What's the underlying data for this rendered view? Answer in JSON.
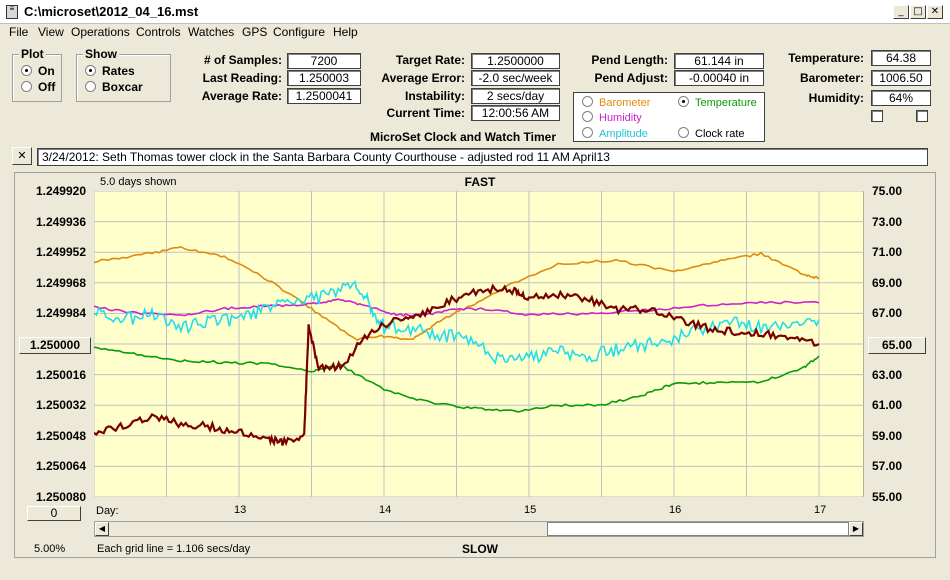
{
  "window": {
    "title": "C:\\microset\\2012_04_16.mst"
  },
  "menu": [
    "File",
    "View",
    "Operations",
    "Controls",
    "Watches",
    "GPS",
    "Configure",
    "Help"
  ],
  "plot_group": {
    "title": "Plot",
    "on": "On",
    "off": "Off",
    "selected": "On"
  },
  "show_group": {
    "title": "Show",
    "rates": "Rates",
    "boxcar": "Boxcar",
    "selected": "Rates"
  },
  "stats": {
    "samples_label": "# of Samples:",
    "samples_value": "7200",
    "last_label": "Last Reading:",
    "last_value": "1.250003",
    "avg_rate_label": "Average Rate:",
    "avg_rate_value": "1.2500041"
  },
  "target": {
    "target_label": "Target Rate:",
    "target_value": "1.2500000",
    "avg_err_label": "Average Error:",
    "avg_err_value": "-2.0 sec/week",
    "instab_label": "Instability:",
    "instab_value": "2 secs/day",
    "time_label": "Current Time:",
    "time_value": "12:00:56 AM"
  },
  "subtitle": "MicroSet Clock and Watch Timer",
  "pend": {
    "length_label": "Pend Length:",
    "length_value": "61.144 in",
    "adjust_label": "Pend Adjust:",
    "adjust_value": "-0.00040 in"
  },
  "aux_options": {
    "barometer": "Barometer",
    "temperature": "Temperature",
    "humidity": "Humidity",
    "amplitude": "Amplitude",
    "clock_rate": "Clock rate",
    "selected": "Temperature"
  },
  "env": {
    "temp_label": "Temperature:",
    "temp_value": "64.38",
    "baro_label": "Barometer:",
    "baro_value": "1006.50",
    "humid_label": "Humidity:",
    "humid_value": "64%"
  },
  "note": {
    "close": "✕",
    "text": "3/24/2012: Seth Thomas tower clock in the Santa Barbara County Courthouse - adjusted rod 11 AM  April13"
  },
  "chart_header": {
    "days_shown": "5.0 days shown",
    "fast": "FAST",
    "slow": "SLOW",
    "day_label": "Day:",
    "grid_note": "Each grid line = 1.106 secs/day",
    "percent": "5.00%",
    "center_left": "1.250000",
    "center_right": "65.00",
    "offset_button": "0"
  },
  "colors": {
    "plot_bg": "#ffffcc",
    "grid": "#c0c0c0",
    "rate": "#7a0000",
    "temperature": "#0a9a0a",
    "barometer": "#e08a10",
    "humidity": "#cc22cc",
    "amplitude": "#22ddee"
  },
  "chart_data": {
    "type": "line",
    "x_ticks": [
      "13",
      "14",
      "15",
      "16",
      "17"
    ],
    "y_left_ticks": [
      "1.249920",
      "1.249936",
      "1.249952",
      "1.249968",
      "1.249984",
      "1.250000",
      "1.250016",
      "1.250032",
      "1.250048",
      "1.250064",
      "1.250080"
    ],
    "y_right_ticks": [
      "75.00",
      "73.00",
      "71.00",
      "69.00",
      "67.00",
      "65.00",
      "63.00",
      "61.00",
      "59.00",
      "57.00",
      "55.00"
    ],
    "xlim": [
      12,
      17
    ],
    "ylim_left": [
      1.24992,
      1.25008
    ],
    "ylim_right": [
      55,
      75
    ],
    "series": [
      {
        "key": "barometer",
        "x": [
          12.0,
          12.3,
          12.6,
          12.9,
          13.2,
          13.5,
          13.8,
          14.0,
          14.2,
          14.4,
          14.6,
          14.9,
          15.2,
          15.6,
          16.0,
          16.3,
          16.6,
          16.9,
          17.0
        ],
        "y": [
          70.4,
          70.8,
          71.3,
          70.7,
          69.2,
          67.3,
          65.3,
          65.5,
          65.3,
          66.6,
          67.5,
          69.0,
          70.2,
          70.5,
          69.7,
          70.4,
          70.9,
          69.5,
          69.3
        ]
      },
      {
        "key": "humidity",
        "x": [
          12.0,
          12.3,
          12.6,
          12.9,
          13.2,
          13.5,
          13.7,
          13.9,
          14.1,
          14.3,
          14.5,
          14.7,
          15.0,
          15.4,
          15.8,
          16.2,
          16.6,
          17.0
        ],
        "y": [
          67.4,
          67.0,
          66.9,
          67.3,
          67.5,
          67.6,
          67.9,
          67.4,
          66.9,
          66.9,
          67.3,
          67.3,
          66.9,
          67.0,
          67.2,
          67.5,
          67.7,
          67.7
        ]
      },
      {
        "key": "amplitude",
        "x": [
          12.0,
          12.2,
          12.4,
          12.6,
          12.8,
          13.0,
          13.2,
          13.4,
          13.6,
          13.8,
          13.9,
          14.0,
          14.2,
          14.4,
          14.6,
          14.8,
          15.0,
          15.2,
          15.4,
          15.6,
          15.8,
          16.0,
          16.2,
          16.4,
          16.6,
          16.8,
          17.0
        ],
        "y": [
          67.0,
          66.6,
          66.9,
          66.0,
          66.5,
          66.6,
          67.4,
          67.8,
          68.1,
          68.8,
          67.6,
          66.1,
          66.0,
          65.6,
          65.2,
          63.9,
          64.1,
          64.5,
          64.2,
          64.6,
          65.0,
          65.4,
          66.0,
          66.5,
          66.0,
          66.5,
          66.6
        ]
      },
      {
        "key": "temperature",
        "x": [
          12.0,
          12.3,
          12.6,
          12.9,
          13.2,
          13.5,
          13.7,
          14.0,
          14.3,
          14.6,
          14.9,
          15.2,
          15.5,
          15.8,
          16.0,
          16.3,
          16.6,
          16.9,
          17.0
        ],
        "y": [
          64.8,
          64.3,
          63.9,
          63.8,
          63.7,
          63.2,
          63.6,
          62.0,
          61.2,
          60.8,
          60.6,
          61.0,
          61.0,
          61.7,
          62.4,
          62.5,
          62.5,
          63.5,
          64.2
        ]
      },
      {
        "key": "rate",
        "x": [
          12.0,
          12.2,
          12.4,
          12.6,
          12.8,
          13.0,
          13.2,
          13.3,
          13.45,
          13.48,
          13.55,
          13.7,
          13.9,
          14.1,
          14.3,
          14.5,
          14.7,
          14.9,
          15.0,
          15.2,
          15.4,
          15.6,
          15.8,
          16.0,
          16.2,
          16.4,
          16.6,
          16.8,
          17.0
        ],
        "y": [
          59.2,
          59.7,
          60.2,
          59.8,
          59.6,
          59.2,
          58.7,
          58.6,
          59.0,
          66.1,
          63.5,
          63.5,
          65.8,
          66.7,
          67.1,
          68.0,
          68.6,
          68.5,
          68.0,
          68.2,
          68.0,
          67.2,
          67.3,
          66.8,
          66.1,
          65.8,
          65.7,
          65.5,
          65.0
        ]
      }
    ]
  }
}
